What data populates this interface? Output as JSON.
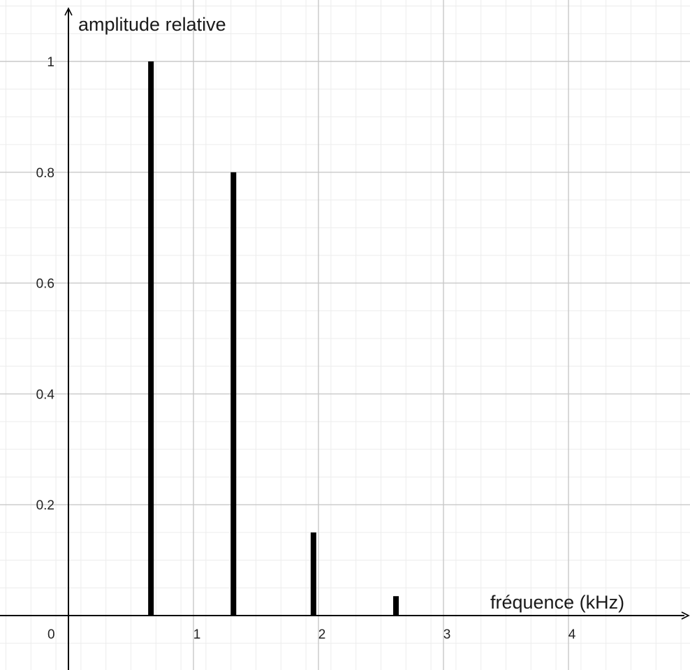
{
  "chart_data": {
    "type": "bar",
    "xlabel": "fréquence (kHz)",
    "ylabel": "amplitude relative",
    "xlim": [
      -0.5,
      4.95
    ],
    "ylim": [
      -0.1,
      1.1
    ],
    "x_ticks": [
      0,
      1,
      2,
      3,
      4
    ],
    "x_tick_labels": [
      "0",
      "1",
      "2",
      "3",
      "4"
    ],
    "y_ticks": [
      0.2,
      0.4,
      0.6,
      0.8,
      1
    ],
    "y_tick_labels": [
      "0.2",
      "0.4",
      "0.6",
      "0.8",
      "1"
    ],
    "grid": true,
    "x": [
      0.66,
      1.32,
      1.96,
      2.62
    ],
    "values": [
      1,
      0.8,
      0.15,
      0.035
    ],
    "bar_color": "#000000",
    "grid_major_color": "#c8c8c8",
    "grid_minor_color": "#ececec",
    "axis_color": "#000000"
  }
}
